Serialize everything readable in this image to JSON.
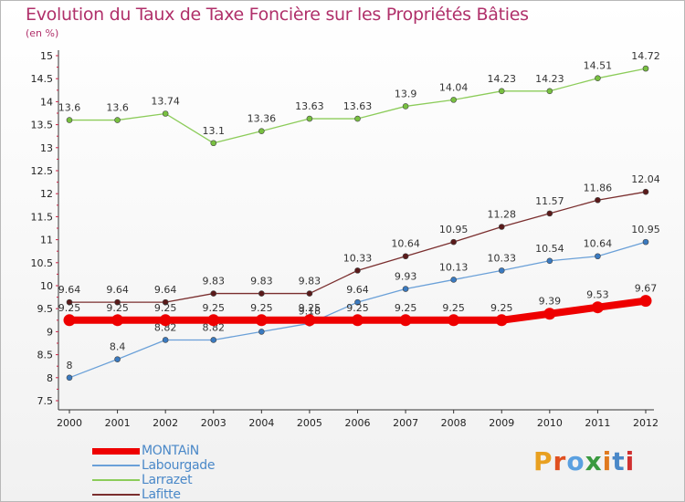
{
  "title": "Evolution du Taux de Taxe Foncière sur les Propriétés Bâties",
  "subtitle": "(en %)",
  "logo": {
    "text": "Proxiti",
    "colors": [
      "#e8a020",
      "#e05020",
      "#5aa0e0",
      "#3a9a40",
      "#e07a20",
      "#4a88c8",
      "#d03030"
    ]
  },
  "chart_data": {
    "type": "line",
    "title": "Evolution du Taux de Taxe Foncière sur les Propriétés Bâties",
    "ylabel": "(en %)",
    "x": [
      "2000",
      "2001",
      "2002",
      "2003",
      "2004",
      "2005",
      "2006",
      "2007",
      "2008",
      "2009",
      "2010",
      "2011",
      "2012"
    ],
    "ylim": [
      7.5,
      15
    ],
    "yticks": [
      "7.5",
      "8",
      "8.5",
      "9",
      "9.5",
      "10",
      "10.5",
      "11",
      "11.5",
      "12",
      "12.5",
      "13",
      "13.5",
      "14",
      "14.5",
      "15"
    ],
    "grid": false,
    "legend_position": "bottom-left",
    "series": [
      {
        "name": "Larrazet",
        "color": "#8ccc5a",
        "marker": "#78c040",
        "width": 1.3,
        "values": [
          13.6,
          13.6,
          13.74,
          13.1,
          13.36,
          13.63,
          13.63,
          13.9,
          14.04,
          14.23,
          14.23,
          14.51,
          14.72
        ],
        "labels": [
          "13.6",
          "13.6",
          "13.74",
          "13.1",
          "13.36",
          "13.63",
          "13.63",
          "13.9",
          "14.04",
          "14.23",
          "14.23",
          "14.51",
          "14.72"
        ]
      },
      {
        "name": "Lafitte",
        "color": "#7a2e2e",
        "marker": "#5a1a1a",
        "width": 1.3,
        "values": [
          9.64,
          9.64,
          9.64,
          9.83,
          9.83,
          9.83,
          10.33,
          10.64,
          10.95,
          11.28,
          11.57,
          11.86,
          12.04
        ],
        "labels": [
          "9.64",
          "9.64",
          "9.64",
          "9.83",
          "9.83",
          "9.83",
          "10.33",
          "10.64",
          "10.95",
          "11.28",
          "11.57",
          "11.86",
          "12.04"
        ]
      },
      {
        "name": "Labourgade",
        "color": "#6aa0d8",
        "marker": "#3a7ac0",
        "width": 1.3,
        "values": [
          8.0,
          8.4,
          8.82,
          8.82,
          9.0,
          9.18,
          9.64,
          9.93,
          10.13,
          10.33,
          10.54,
          10.64,
          10.95
        ],
        "labels": [
          "8",
          "8.4",
          "8.82",
          "8.82",
          "9",
          "9.18",
          "9.64",
          "9.93",
          "10.13",
          "10.33",
          "10.54",
          "10.64",
          "10.95"
        ]
      },
      {
        "name": "MONTAiN",
        "color": "#ee0000",
        "marker": "#ee0000",
        "width": 8,
        "values": [
          9.25,
          9.25,
          9.25,
          9.25,
          9.25,
          9.25,
          9.25,
          9.25,
          9.25,
          9.25,
          9.39,
          9.53,
          9.67
        ],
        "labels": [
          "9.25",
          "9.25",
          "9.25",
          "9.25",
          "9.25",
          "9.25",
          "9.25",
          "9.25",
          "9.25",
          "9.25",
          "9.39",
          "9.53",
          "9.67"
        ]
      }
    ],
    "legend": [
      "MONTAiN",
      "Labourgade",
      "Larrazet",
      "Lafitte"
    ]
  }
}
